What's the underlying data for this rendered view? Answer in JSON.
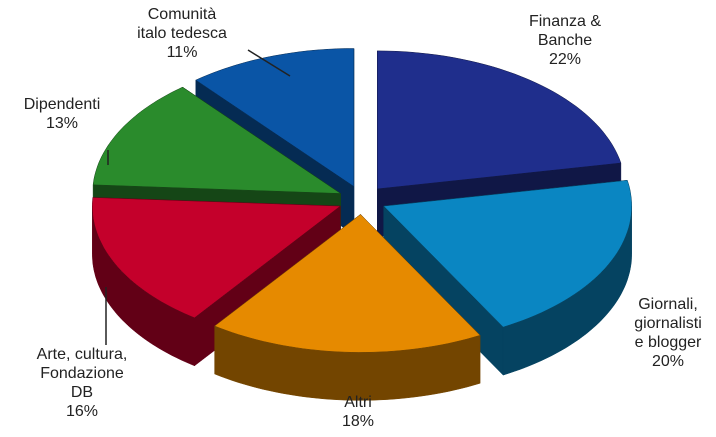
{
  "chart_data": {
    "type": "pie",
    "categories": [
      "Finanza &\nBanche",
      "Giornali,\ngiornalisti\ne blogger",
      "Altri",
      "Arte, cultura,\nFondazione\nDB",
      "Dipendenti",
      "Comunità\nitalo tedesca"
    ],
    "values": [
      22,
      20,
      18,
      16,
      13,
      11
    ],
    "value_labels": [
      "22%",
      "20%",
      "18%",
      "16%",
      "13%",
      "11%"
    ],
    "colors": [
      "#1f2e8c",
      "#0a86c2",
      "#e68a00",
      "#c4002b",
      "#2a8b2c",
      "#0a55a6"
    ]
  }
}
